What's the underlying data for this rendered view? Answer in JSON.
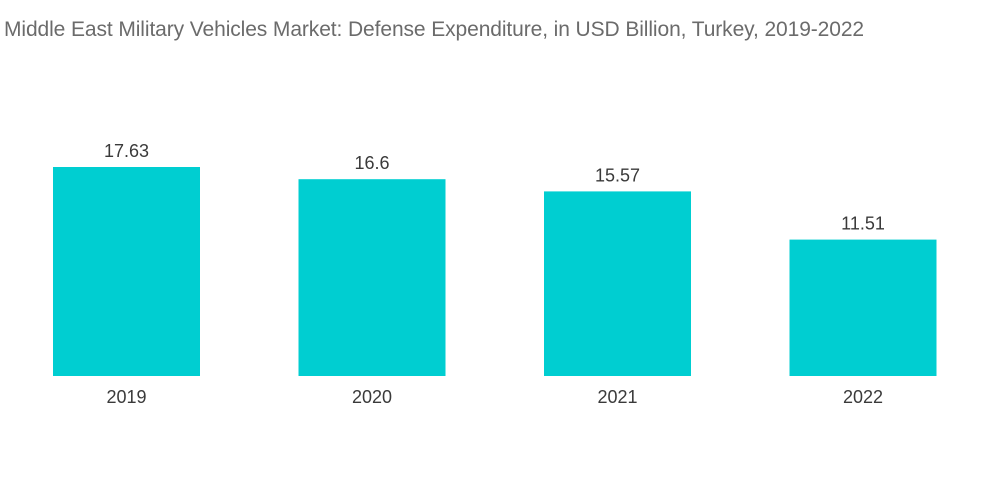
{
  "chart_data": {
    "type": "bar",
    "title": "Middle East Military Vehicles Market: Defense Expenditure, in USD Billion, Turkey, 2019-2022",
    "xlabel": "",
    "ylabel": "",
    "categories": [
      "2019",
      "2020",
      "2021",
      "2022"
    ],
    "values": [
      17.63,
      16.6,
      15.57,
      11.51
    ],
    "value_labels": [
      "17.63",
      "16.6",
      "15.57",
      "11.51"
    ],
    "ylim": [
      0,
      17.63
    ],
    "grid": false,
    "legend": "none",
    "colors": {
      "bar": "#00ced1",
      "text": "#3a3a3a",
      "title": "#6b6b6b"
    }
  }
}
